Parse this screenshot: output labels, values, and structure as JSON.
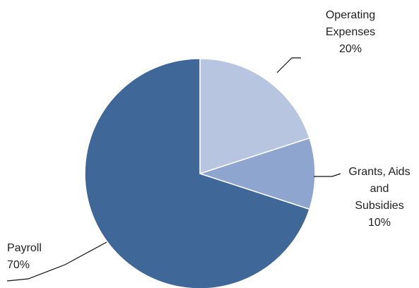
{
  "chart_data": {
    "type": "pie",
    "slices": [
      {
        "name": "Operating Expenses",
        "value": 20,
        "label_lines": [
          "Operating",
          "Expenses",
          "20%"
        ],
        "color": "#B7C5E0"
      },
      {
        "name": "Grants, Aids and Subsidies",
        "value": 10,
        "label_lines": [
          "Grants, Aids",
          "and",
          "Subsidies",
          "10%"
        ],
        "color": "#8EA5CF"
      },
      {
        "name": "Payroll",
        "value": 70,
        "label_lines": [
          "Payroll",
          "70%"
        ],
        "color": "#3F6899"
      }
    ],
    "start_angle_deg": 0,
    "direction": "clockwise",
    "legend": "none",
    "labels": "outside with leader lines"
  }
}
